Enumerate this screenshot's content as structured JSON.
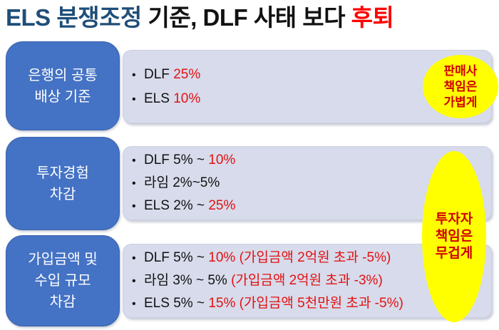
{
  "title": {
    "blue": "ELS 분쟁조정",
    "black": " 기준, DLF 사태 보다 ",
    "red": "후퇴"
  },
  "colors": {
    "accent_blue": "#4472C4",
    "panel_bg": "#D7DBEB",
    "title_blue": "#1F4E79",
    "title_red": "#FF0000",
    "highlight_red": "#E31111",
    "callout_yellow": "#FFFF00",
    "callout_text_red": "#D00000"
  },
  "rows": [
    {
      "label_lines": [
        "은행의 공통",
        "배상 기준"
      ],
      "bullets": [
        {
          "segments": [
            {
              "text": "DLF ",
              "style": "normal"
            },
            {
              "text": "25%",
              "style": "red"
            }
          ]
        },
        {
          "segments": [
            {
              "text": "ELS ",
              "style": "normal"
            },
            {
              "text": "10%",
              "style": "red"
            }
          ]
        }
      ]
    },
    {
      "label_lines": [
        "투자경험",
        "차감"
      ],
      "bullets": [
        {
          "segments": [
            {
              "text": "DLF 5% ~ ",
              "style": "normal"
            },
            {
              "text": "10%",
              "style": "red"
            }
          ]
        },
        {
          "segments": [
            {
              "text": "라임 2%~5%",
              "style": "normal"
            }
          ]
        },
        {
          "segments": [
            {
              "text": "ELS 2% ~ ",
              "style": "normal"
            },
            {
              "text": "25%",
              "style": "red"
            }
          ]
        }
      ]
    },
    {
      "label_lines": [
        "가입금액 및",
        "수입 규모",
        "차감"
      ],
      "bullets": [
        {
          "segments": [
            {
              "text": "DLF 5% ~ ",
              "style": "normal"
            },
            {
              "text": "10% (가입금액 2억원 초과 -5%)",
              "style": "red"
            }
          ]
        },
        {
          "segments": [
            {
              "text": "라임 3% ~ 5% ",
              "style": "normal"
            },
            {
              "text": "(가입금액 2억원 초과 -3%)",
              "style": "red"
            }
          ]
        },
        {
          "segments": [
            {
              "text": "ELS 5% ~ ",
              "style": "normal"
            },
            {
              "text": "15% (가입금액 5천만원 초과 -5%)",
              "style": "red"
            }
          ]
        }
      ]
    }
  ],
  "callouts": [
    {
      "lines": [
        "판매사",
        "책임은",
        "가볍게"
      ]
    },
    {
      "lines": [
        "투자자",
        "책임은",
        "무겁게"
      ]
    }
  ]
}
